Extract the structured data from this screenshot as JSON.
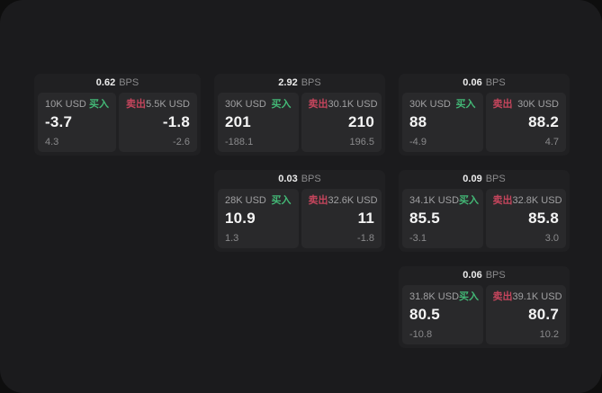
{
  "labels": {
    "bps": "BPS",
    "buy": "买入",
    "sell": "卖出"
  },
  "colors": {
    "outer_bg": "#0e0e0e",
    "window_bg": "#1b1b1d",
    "card_bg": "#202022",
    "panel_bg": "#29292b",
    "buy": "#43b876",
    "sell": "#c4455c",
    "text_primary": "#f4f4f4",
    "text_muted": "#a0a0a2",
    "text_faint": "#8a8a8c"
  },
  "cards": [
    {
      "col": 0,
      "row": 0,
      "bps": "0.62",
      "buy": {
        "size": "10K USD",
        "price": "-3.7",
        "delta": "4.3"
      },
      "sell": {
        "size": "5.5K USD",
        "price": "-1.8",
        "delta": "-2.6"
      }
    },
    {
      "col": 1,
      "row": 0,
      "bps": "2.92",
      "buy": {
        "size": "30K USD",
        "price": "201",
        "delta": "-188.1"
      },
      "sell": {
        "size": "30.1K USD",
        "price": "210",
        "delta": "196.5"
      }
    },
    {
      "col": 2,
      "row": 0,
      "bps": "0.06",
      "buy": {
        "size": "30K USD",
        "price": "88",
        "delta": "-4.9"
      },
      "sell": {
        "size": "30K USD",
        "price": "88.2",
        "delta": "4.7"
      }
    },
    {
      "col": 1,
      "row": 1,
      "bps": "0.03",
      "buy": {
        "size": "28K USD",
        "price": "10.9",
        "delta": "1.3"
      },
      "sell": {
        "size": "32.6K USD",
        "price": "11",
        "delta": "-1.8"
      }
    },
    {
      "col": 2,
      "row": 1,
      "bps": "0.09",
      "buy": {
        "size": "34.1K USD",
        "price": "85.5",
        "delta": "-3.1"
      },
      "sell": {
        "size": "32.8K USD",
        "price": "85.8",
        "delta": "3.0"
      }
    },
    {
      "col": 2,
      "row": 2,
      "bps": "0.06",
      "buy": {
        "size": "31.8K USD",
        "price": "80.5",
        "delta": "-10.8"
      },
      "sell": {
        "size": "39.1K USD",
        "price": "80.7",
        "delta": "10.2"
      }
    }
  ]
}
